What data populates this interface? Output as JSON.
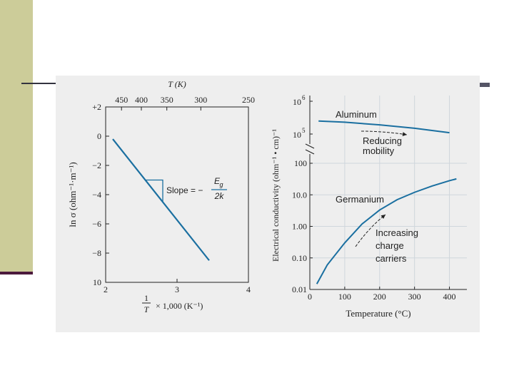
{
  "colors": {
    "accent": "#1a6fa0",
    "sidebar": "#cccc99",
    "sidebar_line": "#4b1a3c",
    "panel": "#eeeeee"
  },
  "chart_data": [
    {
      "type": "line",
      "top_axis_label": "T (K)",
      "top_ticks": [
        {
          "label": "450",
          "inv_x": 2.222
        },
        {
          "label": "400",
          "inv_x": 2.5
        },
        {
          "label": "350",
          "inv_x": 2.857
        },
        {
          "label": "300",
          "inv_x": 3.333
        },
        {
          "label": "250",
          "inv_x": 4.0
        }
      ],
      "x_ticks": [
        "2",
        "3",
        "4"
      ],
      "xlim": [
        2,
        4
      ],
      "xlabel_num": "1",
      "xlabel_den": "T",
      "xlabel_suffix": "× 1,000 (K⁻¹)",
      "y_ticks": [
        "+2",
        "0",
        "−2",
        "−4",
        "−6",
        "−8",
        "10"
      ],
      "ylim": [
        -10,
        2
      ],
      "ylabel": "ln σ (ohm⁻¹·m⁻¹)",
      "series": [
        {
          "values": [
            {
              "x": 2.1,
              "y": -0.2
            },
            {
              "x": 3.45,
              "y": -8.5
            }
          ]
        }
      ],
      "triangle": [
        {
          "x": 2.55,
          "y": -3.0
        },
        {
          "x": 2.8,
          "y": -3.0
        },
        {
          "x": 2.8,
          "y": -4.5
        }
      ],
      "slope_label": "Slope = −",
      "slope_num": "E",
      "slope_num_sub": "g",
      "slope_den": "2k"
    },
    {
      "type": "line",
      "xlabel": "Temperature (°C)",
      "ylabel": "Electrical conductivity (ohm⁻¹ • cm)⁻¹",
      "x_ticks": [
        "0",
        "100",
        "200",
        "300",
        "400"
      ],
      "xlim": [
        0,
        450
      ],
      "y_ticks_lower": [
        "0.01",
        "0.10",
        "1.00",
        "10.0",
        "100"
      ],
      "y_ticks_upper": [
        {
          "base": "10",
          "exp": "5"
        },
        {
          "base": "10",
          "exp": "6"
        }
      ],
      "series": [
        {
          "name": "Aluminum",
          "values": [
            [
              25,
              250000
            ],
            [
              100,
              230000
            ],
            [
              200,
              190000
            ],
            [
              300,
              150000
            ],
            [
              400,
              110000
            ]
          ]
        },
        {
          "name": "Germanium",
          "values": [
            [
              20,
              0.015
            ],
            [
              50,
              0.06
            ],
            [
              100,
              0.3
            ],
            [
              150,
              1.2
            ],
            [
              200,
              3.3
            ],
            [
              250,
              7.0
            ],
            [
              300,
              12
            ],
            [
              350,
              19
            ],
            [
              400,
              28
            ],
            [
              420,
              32
            ]
          ]
        }
      ],
      "annotations": [
        {
          "key": "reducing",
          "lines": [
            "Reducing",
            "mobility"
          ]
        },
        {
          "key": "increasing",
          "lines": [
            "Increasing",
            "charge",
            "carriers"
          ]
        }
      ]
    }
  ]
}
